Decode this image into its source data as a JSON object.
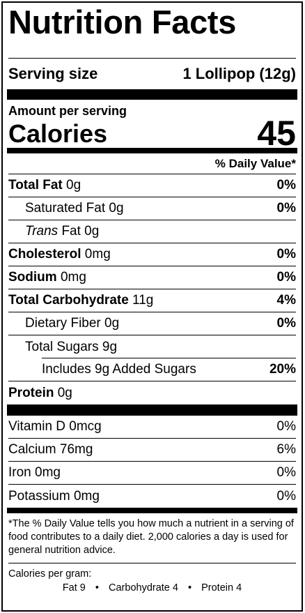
{
  "title": "Nutrition Facts",
  "serving": {
    "label": "Serving size",
    "value": "1 Lollipop (12g)"
  },
  "amount_per_serving": "Amount per serving",
  "calories": {
    "label": "Calories",
    "value": "45"
  },
  "daily_value_header": "% Daily Value*",
  "rows": {
    "total_fat": {
      "name": "Total Fat",
      "amount": " 0g",
      "pct": "0%"
    },
    "saturated_fat": {
      "name": "Saturated Fat 0g",
      "pct": "0%"
    },
    "trans_fat": {
      "name_italic": "Trans",
      "rest": " Fat 0g"
    },
    "cholesterol": {
      "name": "Cholesterol",
      "amount": " 0mg",
      "pct": "0%"
    },
    "sodium": {
      "name": "Sodium",
      "amount": " 0mg",
      "pct": "0%"
    },
    "total_carb": {
      "name": "Total Carbohydrate",
      "amount": " 11g",
      "pct": "4%"
    },
    "dietary_fiber": {
      "name": "Dietary Fiber 0g",
      "pct": "0%"
    },
    "total_sugars": {
      "name": "Total Sugars 9g"
    },
    "added_sugars": {
      "name": "Includes 9g Added Sugars",
      "pct": "20%"
    },
    "protein": {
      "name": "Protein",
      "amount": " 0g"
    }
  },
  "vitamins": [
    {
      "name": "Vitamin D 0mcg",
      "pct": "0%"
    },
    {
      "name": "Calcium 76mg",
      "pct": "6%"
    },
    {
      "name": "Iron 0mg",
      "pct": "0%"
    },
    {
      "name": "Potassium 0mg",
      "pct": "0%"
    }
  ],
  "footnote": "*The % Daily Value tells you how much a nutrient in a serving of food contributes to a daily diet. 2,000 calories a day is used for general nutrition advice.",
  "calories_per_gram": {
    "label": "Calories per gram:",
    "fat": "Fat 9",
    "carb": "Carbohydrate 4",
    "protein": "Protein 4",
    "separator": "•"
  }
}
